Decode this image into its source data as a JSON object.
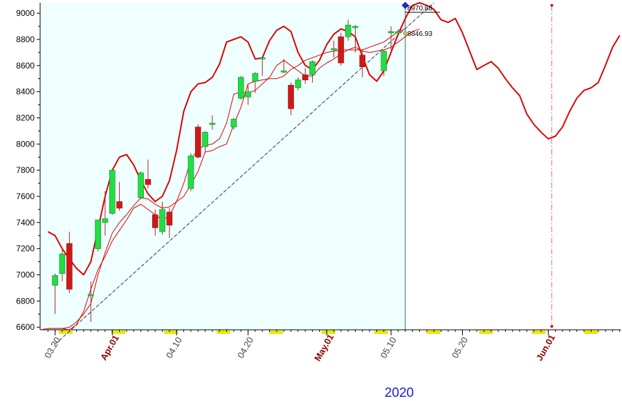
{
  "chart_data": {
    "type": "candlestick",
    "year_label": "2020",
    "ylim": [
      6580,
      9080
    ],
    "y_ticks": [
      6600,
      6800,
      7000,
      7200,
      7400,
      7600,
      7800,
      8000,
      8200,
      8400,
      8600,
      8800,
      9000
    ],
    "x_ticks": [
      {
        "label": "03.20",
        "x": 14,
        "month_start": false
      },
      {
        "label": "Apr.01",
        "x": 22,
        "month_start": true
      },
      {
        "label": "04.10",
        "x": 31,
        "month_start": false
      },
      {
        "label": "04.20",
        "x": 41,
        "month_start": false
      },
      {
        "label": "May.01",
        "x": 52,
        "month_start": true
      },
      {
        "label": "05.10",
        "x": 61,
        "month_start": false
      },
      {
        "label": "05.20",
        "x": 71,
        "month_start": false
      },
      {
        "label": "Jun.01",
        "x": 83,
        "month_start": true
      }
    ],
    "candles": [
      {
        "x": 14,
        "o": 6920,
        "h": 7010,
        "l": 6700,
        "c": 6995
      },
      {
        "x": 15,
        "o": 7010,
        "h": 7210,
        "l": 6950,
        "c": 7160
      },
      {
        "x": 16,
        "o": 7240,
        "h": 7330,
        "l": 6860,
        "c": 6890
      },
      {
        "x": 19,
        "o": 6850,
        "h": 6950,
        "l": 6640,
        "c": 6850
      },
      {
        "x": 20,
        "o": 7200,
        "h": 7420,
        "l": 7180,
        "c": 7420
      },
      {
        "x": 21,
        "o": 7400,
        "h": 7640,
        "l": 7300,
        "c": 7430
      },
      {
        "x": 22,
        "o": 7470,
        "h": 7810,
        "l": 7460,
        "c": 7800
      },
      {
        "x": 23,
        "o": 7560,
        "h": 7710,
        "l": 7490,
        "c": 7510
      },
      {
        "x": 26,
        "o": 7590,
        "h": 7790,
        "l": 7580,
        "c": 7780
      },
      {
        "x": 27,
        "o": 7730,
        "h": 7880,
        "l": 7660,
        "c": 7690
      },
      {
        "x": 28,
        "o": 7460,
        "h": 7500,
        "l": 7300,
        "c": 7360
      },
      {
        "x": 29,
        "o": 7330,
        "h": 7560,
        "l": 7310,
        "c": 7500
      },
      {
        "x": 30,
        "o": 7480,
        "h": 7510,
        "l": 7280,
        "c": 7380
      },
      {
        "x": 33,
        "o": 7660,
        "h": 7930,
        "l": 7640,
        "c": 7910
      },
      {
        "x": 34,
        "o": 8130,
        "h": 8150,
        "l": 7890,
        "c": 7900
      },
      {
        "x": 35,
        "o": 7980,
        "h": 8100,
        "l": 7930,
        "c": 8090
      },
      {
        "x": 36,
        "o": 8160,
        "h": 8220,
        "l": 8110,
        "c": 8160
      },
      {
        "x": 39,
        "o": 8130,
        "h": 8200,
        "l": 8110,
        "c": 8190
      },
      {
        "x": 40,
        "o": 8350,
        "h": 8520,
        "l": 8340,
        "c": 8510
      },
      {
        "x": 41,
        "o": 8360,
        "h": 8460,
        "l": 8300,
        "c": 8400
      },
      {
        "x": 42,
        "o": 8480,
        "h": 8550,
        "l": 8390,
        "c": 8540
      },
      {
        "x": 43,
        "o": 8660,
        "h": 8670,
        "l": 8520,
        "c": 8660
      },
      {
        "x": 46,
        "o": 8560,
        "h": 8650,
        "l": 8540,
        "c": 8560
      },
      {
        "x": 47,
        "o": 8450,
        "h": 8470,
        "l": 8220,
        "c": 8270
      },
      {
        "x": 48,
        "o": 8430,
        "h": 8510,
        "l": 8410,
        "c": 8490
      },
      {
        "x": 49,
        "o": 8530,
        "h": 8580,
        "l": 8460,
        "c": 8490
      },
      {
        "x": 50,
        "o": 8530,
        "h": 8640,
        "l": 8470,
        "c": 8630
      },
      {
        "x": 53,
        "o": 8730,
        "h": 8790,
        "l": 8660,
        "c": 8730
      },
      {
        "x": 54,
        "o": 8820,
        "h": 8850,
        "l": 8600,
        "c": 8620
      },
      {
        "x": 55,
        "o": 8820,
        "h": 8950,
        "l": 8790,
        "c": 8910
      },
      {
        "x": 56,
        "o": 8900,
        "h": 8910,
        "l": 8700,
        "c": 8900
      },
      {
        "x": 57,
        "o": 8680,
        "h": 8720,
        "l": 8510,
        "c": 8590
      },
      {
        "x": 60,
        "o": 8560,
        "h": 8720,
        "l": 8520,
        "c": 8710
      },
      {
        "x": 61,
        "o": 8860,
        "h": 8900,
        "l": 8720,
        "c": 8860
      },
      {
        "x": 62,
        "o": 8860,
        "h": 8880,
        "l": 8830,
        "c": 8860
      }
    ],
    "upper_band": [
      [
        13,
        7330
      ],
      [
        14,
        7300
      ],
      [
        15,
        7200
      ],
      [
        16,
        7120
      ],
      [
        17,
        7050
      ],
      [
        18,
        7000
      ],
      [
        19,
        7100
      ],
      [
        20,
        7350
      ],
      [
        21,
        7600
      ],
      [
        22,
        7800
      ],
      [
        23,
        7900
      ],
      [
        24,
        7920
      ],
      [
        25,
        7840
      ],
      [
        26,
        7720
      ],
      [
        27,
        7620
      ],
      [
        28,
        7560
      ],
      [
        29,
        7600
      ],
      [
        30,
        7720
      ],
      [
        31,
        7950
      ],
      [
        32,
        8250
      ],
      [
        33,
        8400
      ],
      [
        34,
        8460
      ],
      [
        35,
        8470
      ],
      [
        36,
        8510
      ],
      [
        37,
        8610
      ],
      [
        38,
        8780
      ],
      [
        39,
        8800
      ],
      [
        40,
        8820
      ],
      [
        41,
        8780
      ],
      [
        42,
        8650
      ],
      [
        43,
        8660
      ],
      [
        44,
        8790
      ],
      [
        45,
        8870
      ],
      [
        46,
        8900
      ],
      [
        47,
        8860
      ],
      [
        48,
        8700
      ],
      [
        49,
        8600
      ],
      [
        50,
        8570
      ],
      [
        51,
        8640
      ],
      [
        52,
        8760
      ],
      [
        53,
        8840
      ],
      [
        54,
        8880
      ],
      [
        55,
        8860
      ],
      [
        56,
        8820
      ],
      [
        57,
        8670
      ],
      [
        58,
        8530
      ],
      [
        59,
        8480
      ],
      [
        60,
        8560
      ],
      [
        61,
        8700
      ],
      [
        62,
        8840
      ],
      [
        63,
        8960
      ],
      [
        64,
        9060
      ],
      [
        65,
        9080
      ],
      [
        66,
        9060
      ],
      [
        67,
        9030
      ],
      [
        68,
        8950
      ],
      [
        69,
        8930
      ],
      [
        70,
        8960
      ],
      [
        71,
        8850
      ],
      [
        72,
        8710
      ],
      [
        73,
        8570
      ],
      [
        74,
        8600
      ],
      [
        75,
        8630
      ],
      [
        76,
        8580
      ],
      [
        77,
        8500
      ],
      [
        78,
        8430
      ],
      [
        79,
        8370
      ],
      [
        80,
        8230
      ],
      [
        81,
        8150
      ],
      [
        82,
        8090
      ],
      [
        83,
        8040
      ],
      [
        84,
        8060
      ],
      [
        85,
        8130
      ],
      [
        86,
        8250
      ],
      [
        87,
        8350
      ],
      [
        88,
        8410
      ],
      [
        89,
        8430
      ],
      [
        90,
        8470
      ],
      [
        91,
        8600
      ],
      [
        92,
        8740
      ],
      [
        93,
        8830
      ]
    ],
    "lower_band": [
      [
        13,
        6590
      ],
      [
        14,
        6590
      ],
      [
        15,
        6590
      ],
      [
        16,
        6580
      ],
      [
        17,
        6620
      ],
      [
        18,
        6720
      ],
      [
        19,
        6890
      ],
      [
        20,
        7040
      ],
      [
        21,
        7140
      ],
      [
        22,
        7260
      ],
      [
        23,
        7340
      ],
      [
        24,
        7420
      ],
      [
        25,
        7510
      ],
      [
        26,
        7540
      ],
      [
        27,
        7500
      ],
      [
        28,
        7460
      ],
      [
        29,
        7420
      ],
      [
        30,
        7450
      ],
      [
        31,
        7560
      ],
      [
        32,
        7700
      ],
      [
        33,
        7880
      ],
      [
        34,
        7960
      ],
      [
        35,
        7990
      ],
      [
        36,
        8000
      ],
      [
        37,
        8040
      ],
      [
        38,
        8160
      ],
      [
        39,
        8380
      ],
      [
        40,
        8400
      ],
      [
        41,
        8390
      ],
      [
        42,
        8410
      ],
      [
        43,
        8460
      ],
      [
        44,
        8510
      ],
      [
        45,
        8600
      ],
      [
        46,
        8640
      ],
      [
        47,
        8600
      ],
      [
        48,
        8560
      ],
      [
        49,
        8520
      ],
      [
        50,
        8520
      ],
      [
        51,
        8580
      ],
      [
        52,
        8620
      ],
      [
        53,
        8650
      ],
      [
        54,
        8690
      ],
      [
        55,
        8720
      ],
      [
        56,
        8740
      ],
      [
        57,
        8710
      ],
      [
        58,
        8700
      ],
      [
        59,
        8710
      ],
      [
        60,
        8720
      ],
      [
        61,
        8740
      ],
      [
        62,
        8780
      ],
      [
        63,
        8820
      ],
      [
        64,
        8860
      ],
      [
        65,
        8880
      ]
    ],
    "mid_line": [
      [
        12,
        6580
      ],
      [
        13,
        6590
      ],
      [
        14,
        6590
      ],
      [
        15,
        6590
      ],
      [
        16,
        6600
      ],
      [
        17,
        6640
      ],
      [
        18,
        6700
      ],
      [
        19,
        6780
      ],
      [
        20,
        7000
      ],
      [
        21,
        7170
      ],
      [
        22,
        7320
      ],
      [
        23,
        7400
      ],
      [
        24,
        7460
      ],
      [
        25,
        7530
      ],
      [
        26,
        7590
      ],
      [
        27,
        7580
      ],
      [
        28,
        7540
      ],
      [
        29,
        7510
      ],
      [
        30,
        7520
      ],
      [
        31,
        7560
      ],
      [
        32,
        7600
      ],
      [
        33,
        7690
      ],
      [
        34,
        7790
      ],
      [
        35,
        7940
      ],
      [
        36,
        7950
      ],
      [
        37,
        7980
      ],
      [
        38,
        8000
      ],
      [
        39,
        8150
      ],
      [
        40,
        8280
      ],
      [
        41,
        8460
      ],
      [
        42,
        8480
      ],
      [
        43,
        8490
      ],
      [
        44,
        8500
      ],
      [
        45,
        8500
      ],
      [
        46,
        8520
      ],
      [
        47,
        8570
      ],
      [
        48,
        8600
      ],
      [
        49,
        8640
      ],
      [
        50,
        8660
      ],
      [
        51,
        8680
      ],
      [
        52,
        8700
      ],
      [
        53,
        8710
      ],
      [
        54,
        8720
      ],
      [
        55,
        8720
      ],
      [
        56,
        8720
      ],
      [
        57,
        8720
      ],
      [
        58,
        8740
      ],
      [
        59,
        8760
      ],
      [
        60,
        8780
      ],
      [
        61,
        8820
      ],
      [
        62,
        8860
      ],
      [
        63,
        8880
      ]
    ],
    "trendline": {
      "from": [
        14,
        6470
      ],
      "to": [
        67,
        9080
      ]
    },
    "annotations": [
      {
        "label": "8970.68",
        "x": 63,
        "y": 9060
      },
      {
        "label": "8846.93",
        "x": 63,
        "y": 8846.93
      }
    ],
    "projection_marker_x": 83.5,
    "highlight_end_x": 63
  }
}
